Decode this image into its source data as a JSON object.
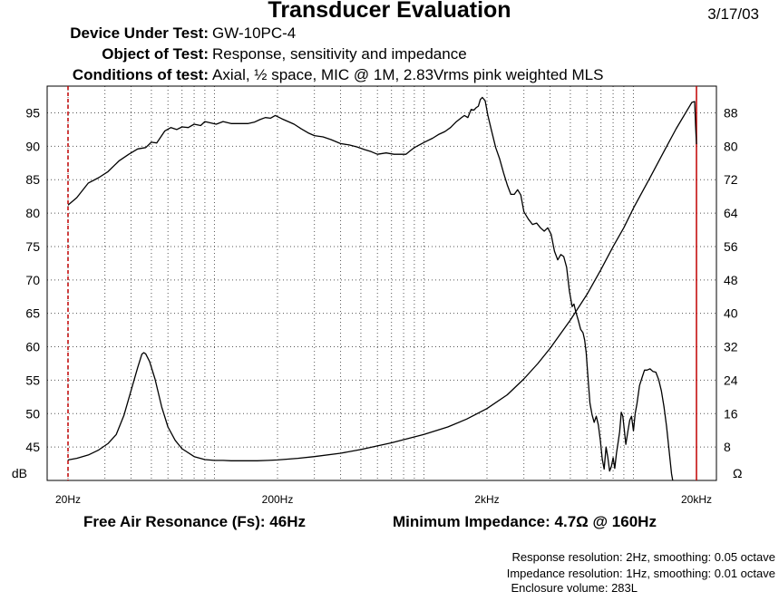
{
  "title": "Transducer Evaluation",
  "date": "3/17/03",
  "header": [
    {
      "key": "Device Under Test:",
      "value": "GW-10PC-4"
    },
    {
      "key": "Object of Test:",
      "value": "Response, sensitivity and impedance"
    },
    {
      "key": "Conditions of test:",
      "value": "Axial, ½ space, MIC @ 1M, 2.83Vrms pink weighted MLS"
    }
  ],
  "footer": {
    "resonance": "Free Air Resonance (Fs): 46Hz",
    "min_impedance": "Minimum Impedance: 4.7Ω @ 160Hz"
  },
  "notes": [
    "Response resolution: 2Hz, smoothing: 0.05 octave",
    "Impedance resolution: 1Hz, smoothing: 0.01 octave",
    "Enclosure volume: 283L"
  ],
  "chart_data": {
    "type": "line",
    "x_scale": "log",
    "xlim": [
      20,
      20000
    ],
    "x_ticks": [
      {
        "value": 20,
        "label": "20Hz"
      },
      {
        "value": 200,
        "label": "200Hz"
      },
      {
        "value": 2000,
        "label": "2kHz"
      },
      {
        "value": 20000,
        "label": "20kHz"
      }
    ],
    "left_axis": {
      "label": "dB",
      "ylim": [
        40,
        99
      ],
      "ticks": [
        45,
        50,
        55,
        60,
        65,
        70,
        75,
        80,
        85,
        90,
        95
      ]
    },
    "right_axis": {
      "label": "Ω",
      "ylim": [
        0,
        94.4
      ],
      "ticks": [
        8,
        16,
        24,
        32,
        40,
        48,
        56,
        64,
        72,
        80,
        88
      ]
    },
    "grid": "dotted",
    "markers": [
      {
        "x": 20,
        "style": "dashed",
        "color": "#c00000"
      },
      {
        "x": 20000,
        "style": "solid",
        "color": "#c00000"
      }
    ],
    "series": [
      {
        "axis": "left",
        "points": [
          [
            20,
            81.2
          ],
          [
            22,
            82.3
          ],
          [
            25,
            84.5
          ],
          [
            28,
            85.3
          ],
          [
            31,
            86.2
          ],
          [
            35,
            87.8
          ],
          [
            39,
            88.8
          ],
          [
            43,
            89.6
          ],
          [
            47,
            89.8
          ],
          [
            50,
            90.6
          ],
          [
            53,
            90.5
          ],
          [
            58,
            92.3
          ],
          [
            62,
            92.8
          ],
          [
            66,
            92.5
          ],
          [
            70,
            92.9
          ],
          [
            75,
            92.8
          ],
          [
            80,
            93.3
          ],
          [
            86,
            93.1
          ],
          [
            90,
            93.7
          ],
          [
            96,
            93.5
          ],
          [
            102,
            93.3
          ],
          [
            110,
            93.7
          ],
          [
            120,
            93.4
          ],
          [
            132,
            93.4
          ],
          [
            145,
            93.4
          ],
          [
            155,
            93.6
          ],
          [
            165,
            94.0
          ],
          [
            175,
            94.3
          ],
          [
            185,
            94.2
          ],
          [
            195,
            94.6
          ],
          [
            210,
            94.1
          ],
          [
            225,
            93.7
          ],
          [
            240,
            93.3
          ],
          [
            260,
            92.6
          ],
          [
            280,
            92.0
          ],
          [
            300,
            91.6
          ],
          [
            330,
            91.4
          ],
          [
            360,
            91.0
          ],
          [
            400,
            90.4
          ],
          [
            440,
            90.2
          ],
          [
            480,
            89.9
          ],
          [
            520,
            89.5
          ],
          [
            560,
            89.2
          ],
          [
            600,
            88.8
          ],
          [
            660,
            89.0
          ],
          [
            720,
            88.8
          ],
          [
            780,
            88.8
          ],
          [
            820,
            88.8
          ],
          [
            850,
            89.2
          ],
          [
            900,
            89.8
          ],
          [
            950,
            90.2
          ],
          [
            1020,
            90.7
          ],
          [
            1100,
            91.2
          ],
          [
            1180,
            91.8
          ],
          [
            1260,
            92.2
          ],
          [
            1340,
            92.8
          ],
          [
            1420,
            93.6
          ],
          [
            1500,
            94.2
          ],
          [
            1560,
            94.6
          ],
          [
            1620,
            94.3
          ],
          [
            1680,
            95.5
          ],
          [
            1730,
            95.4
          ],
          [
            1780,
            95.8
          ],
          [
            1820,
            96.0
          ],
          [
            1860,
            97.0
          ],
          [
            1900,
            97.3
          ],
          [
            1960,
            96.8
          ],
          [
            2020,
            94.6
          ],
          [
            2100,
            92.4
          ],
          [
            2200,
            89.8
          ],
          [
            2300,
            88.1
          ],
          [
            2400,
            86.0
          ],
          [
            2500,
            84.2
          ],
          [
            2600,
            82.8
          ],
          [
            2700,
            82.8
          ],
          [
            2800,
            83.5
          ],
          [
            2900,
            82.7
          ],
          [
            3000,
            80.2
          ],
          [
            3150,
            79.1
          ],
          [
            3300,
            78.3
          ],
          [
            3450,
            78.5
          ],
          [
            3600,
            77.8
          ],
          [
            3750,
            77.3
          ],
          [
            3900,
            77.8
          ],
          [
            4050,
            76.8
          ],
          [
            4200,
            74.3
          ],
          [
            4350,
            73.0
          ],
          [
            4500,
            73.8
          ],
          [
            4650,
            73.5
          ],
          [
            4800,
            71.9
          ],
          [
            4950,
            68.3
          ],
          [
            5100,
            66.0
          ],
          [
            5200,
            66.4
          ],
          [
            5300,
            65.3
          ],
          [
            5450,
            64.0
          ],
          [
            5600,
            62.6
          ],
          [
            5750,
            62.1
          ],
          [
            5850,
            61.0
          ],
          [
            5950,
            59.1
          ],
          [
            6050,
            56.1
          ],
          [
            6200,
            51.6
          ],
          [
            6350,
            49.8
          ],
          [
            6500,
            48.7
          ],
          [
            6650,
            49.6
          ],
          [
            6800,
            48.3
          ],
          [
            6950,
            46.0
          ],
          [
            7100,
            43.2
          ],
          [
            7250,
            41.7
          ],
          [
            7400,
            45.0
          ],
          [
            7550,
            43.4
          ],
          [
            7700,
            41.4
          ],
          [
            7850,
            42.1
          ],
          [
            8000,
            43.4
          ],
          [
            8150,
            41.8
          ],
          [
            8300,
            44.1
          ],
          [
            8450,
            45.7
          ],
          [
            8600,
            47.3
          ],
          [
            8750,
            50.2
          ],
          [
            8900,
            49.6
          ],
          [
            9050,
            47.6
          ],
          [
            9200,
            45.4
          ],
          [
            9400,
            47.3
          ],
          [
            9600,
            49.0
          ],
          [
            9800,
            49.6
          ],
          [
            10000,
            47.4
          ],
          [
            10200,
            50.0
          ],
          [
            10400,
            51.5
          ],
          [
            10700,
            54.2
          ],
          [
            11000,
            55.4
          ],
          [
            11300,
            56.5
          ],
          [
            11600,
            56.5
          ],
          [
            12000,
            56.7
          ],
          [
            12400,
            56.3
          ],
          [
            12800,
            56.2
          ],
          [
            13200,
            55.1
          ],
          [
            13600,
            53.4
          ],
          [
            14000,
            51.0
          ],
          [
            14400,
            48.1
          ],
          [
            14800,
            44.5
          ],
          [
            15200,
            41.0
          ],
          [
            15400,
            40.0
          ]
        ]
      },
      {
        "axis": "right",
        "points": [
          [
            20,
            4.9
          ],
          [
            22,
            5.3
          ],
          [
            25,
            6.1
          ],
          [
            28,
            7.3
          ],
          [
            31,
            8.8
          ],
          [
            34,
            11.0
          ],
          [
            37,
            15.6
          ],
          [
            40,
            21.5
          ],
          [
            43,
            27.0
          ],
          [
            45,
            30.2
          ],
          [
            46,
            30.6
          ],
          [
            47,
            30.3
          ],
          [
            49,
            28.5
          ],
          [
            52,
            24.3
          ],
          [
            56,
            17.6
          ],
          [
            60,
            12.8
          ],
          [
            65,
            9.6
          ],
          [
            70,
            7.6
          ],
          [
            80,
            5.7
          ],
          [
            90,
            5.0
          ],
          [
            100,
            4.8
          ],
          [
            110,
            4.8
          ],
          [
            120,
            4.7
          ],
          [
            130,
            4.7
          ],
          [
            140,
            4.7
          ],
          [
            160,
            4.7
          ],
          [
            180,
            4.8
          ],
          [
            200,
            4.9
          ],
          [
            250,
            5.3
          ],
          [
            300,
            5.7
          ],
          [
            400,
            6.5
          ],
          [
            500,
            7.4
          ],
          [
            700,
            9.0
          ],
          [
            1000,
            11.0
          ],
          [
            1300,
            12.8
          ],
          [
            1600,
            14.7
          ],
          [
            2000,
            17.2
          ],
          [
            2500,
            20.5
          ],
          [
            3000,
            24.3
          ],
          [
            3500,
            28.0
          ],
          [
            4000,
            31.6
          ],
          [
            5000,
            38.4
          ],
          [
            6000,
            44.5
          ],
          [
            7000,
            50.5
          ],
          [
            8000,
            56.0
          ],
          [
            9000,
            60.5
          ],
          [
            10000,
            65.2
          ],
          [
            12000,
            72.5
          ],
          [
            14000,
            78.8
          ],
          [
            16000,
            84.2
          ],
          [
            18000,
            88.5
          ],
          [
            19000,
            90.5
          ],
          [
            19600,
            90.7
          ],
          [
            19800,
            85.0
          ],
          [
            20000,
            80.5
          ]
        ]
      }
    ]
  }
}
